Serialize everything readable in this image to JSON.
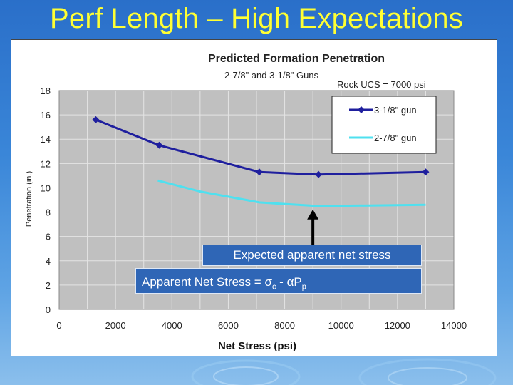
{
  "slide": {
    "title": "Perf Length – High Expectations",
    "callout_expected": "Expected apparent net stress",
    "formula_prefix": "Apparent Net Stress = ",
    "formula_sigma": "σ",
    "formula_c": "c",
    "formula_dash": " - ",
    "formula_alpha": "α",
    "formula_P": "P",
    "formula_p": "p"
  },
  "chart_data": {
    "type": "line",
    "title": "Predicted Formation Penetration",
    "subtitle": "2-7/8\" and 3-1/8\" Guns",
    "annotation": "Rock UCS = 7000 psi",
    "xlabel": "Net Stress (psi)",
    "ylabel": "Penetration (in.)",
    "xlim": [
      0,
      14000
    ],
    "ylim": [
      0,
      18
    ],
    "xticks": [
      "0",
      "2000",
      "4000",
      "6000",
      "8000",
      "10000",
      "12000",
      "14000"
    ],
    "yticks": [
      "0",
      "2",
      "4",
      "6",
      "8",
      "10",
      "12",
      "14",
      "16",
      "18"
    ],
    "grid": true,
    "legend_position": "top-right",
    "series": [
      {
        "name": "3-1/8\" gun",
        "color": "#1f1f9e",
        "markers": true,
        "x": [
          1300,
          3550,
          7100,
          9200,
          13000
        ],
        "y": [
          15.6,
          13.5,
          11.3,
          11.1,
          11.3
        ]
      },
      {
        "name": "2-7/8\" gun",
        "color": "#4fe0ef",
        "markers": false,
        "x": [
          3500,
          5000,
          7100,
          9200,
          11000,
          13000
        ],
        "y": [
          10.6,
          9.7,
          8.8,
          8.5,
          8.55,
          8.6
        ]
      }
    ],
    "arrow_x": 9000,
    "arrow_y": 8.4
  }
}
